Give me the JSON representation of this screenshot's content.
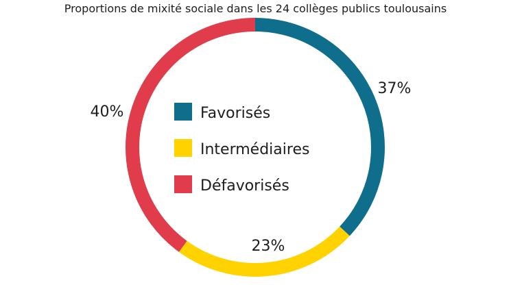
{
  "chart_data": {
    "type": "pie",
    "title": "Proportions de mixité sociale dans les 24 collèges publics toulousains",
    "donut": true,
    "slices": [
      {
        "name": "Favorisés",
        "value": 37,
        "label": "37%",
        "color": "#0f6e8c"
      },
      {
        "name": "Intermédiaires",
        "value": 23,
        "label": "23%",
        "color": "#ffd200"
      },
      {
        "name": "Défavorisés",
        "value": 40,
        "label": "40%",
        "color": "#e03c4b"
      }
    ],
    "legend_position": "center"
  }
}
